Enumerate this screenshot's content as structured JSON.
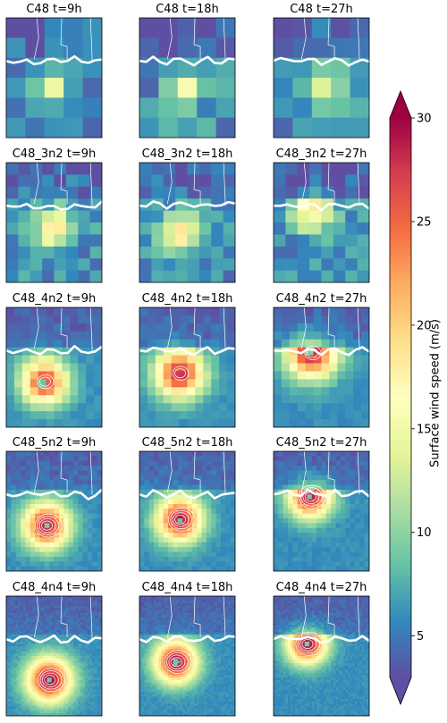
{
  "figure": {
    "colormap": "Spectral_r",
    "coast_color": "#ffffff"
  },
  "chart_data": {
    "type": "heatmap",
    "title": "",
    "rows": [
      {
        "name": "C48",
        "titles": [
          "C48 t=9h",
          "C48 t=18h",
          "C48 t=27h"
        ]
      },
      {
        "name": "C48_3n2",
        "titles": [
          "C48_3n2 t=9h",
          "C48_3n2 t=18h",
          "C48_3n2 t=27h"
        ]
      },
      {
        "name": "C48_4n2",
        "titles": [
          "C48_4n2 t=9h",
          "C48_4n2 t=18h",
          "C48_4n2 t=27h"
        ]
      },
      {
        "name": "C48_5n2",
        "titles": [
          "C48_5n2 t=9h",
          "C48_5n2 t=18h",
          "C48_5n2 t=27h"
        ]
      },
      {
        "name": "C48_4n4",
        "titles": [
          "C48_4n4 t=9h",
          "C48_4n4 t=18h",
          "C48_4n4 t=27h"
        ]
      }
    ],
    "colorbar": {
      "label": "Surface wind speed (m/s)",
      "ticks": [
        5,
        10,
        15,
        20,
        25,
        30
      ],
      "range": [
        3,
        30
      ],
      "extend": "both"
    },
    "storm": [
      [
        {
          "cx": 0.45,
          "cy": 0.62,
          "peak": 15,
          "radius": 0.2
        },
        {
          "cx": 0.5,
          "cy": 0.6,
          "peak": 16,
          "radius": 0.22
        },
        {
          "cx": 0.55,
          "cy": 0.55,
          "peak": 15,
          "radius": 0.25
        }
      ],
      [
        {
          "cx": 0.5,
          "cy": 0.55,
          "peak": 18,
          "radius": 0.24
        },
        {
          "cx": 0.45,
          "cy": 0.58,
          "peak": 18,
          "radius": 0.26
        },
        {
          "cx": 0.4,
          "cy": 0.4,
          "peak": 18,
          "radius": 0.28
        }
      ],
      [
        {
          "cx": 0.4,
          "cy": 0.62,
          "peak": 27,
          "radius": 0.3
        },
        {
          "cx": 0.42,
          "cy": 0.55,
          "peak": 28,
          "radius": 0.32
        },
        {
          "cx": 0.4,
          "cy": 0.38,
          "peak": 29,
          "radius": 0.33
        }
      ],
      [
        {
          "cx": 0.42,
          "cy": 0.62,
          "peak": 29,
          "radius": 0.3
        },
        {
          "cx": 0.42,
          "cy": 0.57,
          "peak": 29,
          "radius": 0.3
        },
        {
          "cx": 0.38,
          "cy": 0.38,
          "peak": 29,
          "radius": 0.28
        }
      ],
      [
        {
          "cx": 0.45,
          "cy": 0.7,
          "peak": 30,
          "radius": 0.3
        },
        {
          "cx": 0.38,
          "cy": 0.55,
          "peak": 30,
          "radius": 0.28
        },
        {
          "cx": 0.35,
          "cy": 0.4,
          "peak": 30,
          "radius": 0.26
        }
      ]
    ]
  }
}
